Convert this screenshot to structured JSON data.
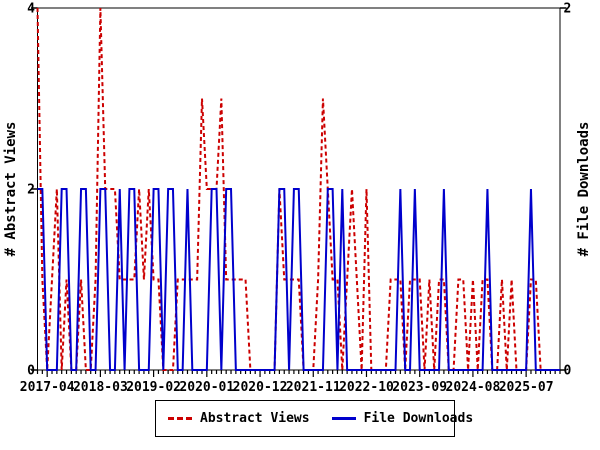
{
  "chart_data": {
    "type": "line",
    "title": "",
    "x_start_month": "2017-02",
    "x_end_month": "2026-02",
    "months_per_point": 1,
    "x_tick_labels": [
      "2017-04",
      "2018-03",
      "2019-02",
      "2020-01",
      "2020-12",
      "2021-11",
      "2022-10",
      "2023-09",
      "2024-08",
      "2025-07"
    ],
    "x_tick_month_indices": [
      2,
      13,
      24,
      35,
      46,
      57,
      68,
      79,
      90,
      101
    ],
    "left_axis": {
      "label": "# Abstract Views",
      "min": 0,
      "max": 4,
      "tick_values": [
        0,
        2,
        4
      ]
    },
    "right_axis": {
      "label": "# File Downloads",
      "min": 0,
      "max": 2,
      "tick_values": [
        0,
        2
      ]
    },
    "grid": false,
    "legend_position": "bottom",
    "series": [
      {
        "name": "Abstract Views",
        "axis": "left",
        "color": "#cc0000",
        "style": "dashed",
        "values": [
          4,
          1,
          0,
          1,
          2,
          0,
          1,
          0,
          0,
          1,
          0,
          0,
          1,
          4,
          2,
          2,
          2,
          1,
          1,
          1,
          1,
          2,
          1,
          2,
          1,
          1,
          0,
          0,
          0,
          1,
          1,
          1,
          1,
          1,
          3,
          2,
          2,
          2,
          3,
          1,
          1,
          1,
          1,
          1,
          0,
          0,
          0,
          0,
          0,
          0,
          2,
          1,
          1,
          1,
          1,
          0,
          0,
          0,
          1,
          3,
          2,
          1,
          1,
          0,
          1,
          2,
          1,
          0,
          2,
          0,
          0,
          0,
          0,
          1,
          1,
          1,
          0,
          1,
          1,
          1,
          0,
          1,
          0,
          1,
          1,
          0,
          0,
          1,
          1,
          0,
          1,
          0,
          1,
          1,
          0,
          0,
          1,
          0,
          1,
          0,
          0,
          0,
          1,
          1,
          0,
          0,
          0,
          0,
          0
        ]
      },
      {
        "name": "File Downloads",
        "axis": "right",
        "color": "#0000cc",
        "style": "solid",
        "values": [
          1,
          1,
          0,
          0,
          0,
          1,
          1,
          0,
          0,
          1,
          1,
          0,
          0,
          1,
          1,
          0,
          0,
          1,
          0,
          1,
          1,
          0,
          0,
          0,
          1,
          1,
          0,
          1,
          1,
          0,
          0,
          1,
          0,
          0,
          0,
          0,
          1,
          1,
          0,
          1,
          1,
          0,
          0,
          0,
          0,
          0,
          0,
          0,
          0,
          0,
          1,
          1,
          0,
          1,
          1,
          0,
          0,
          0,
          0,
          0,
          1,
          1,
          0,
          1,
          0,
          0,
          0,
          0,
          0,
          0,
          0,
          0,
          0,
          0,
          0,
          1,
          0,
          0,
          1,
          0,
          0,
          0,
          0,
          0,
          1,
          0,
          0,
          0,
          0,
          0,
          0,
          0,
          0,
          1,
          0,
          0,
          0,
          0,
          0,
          0,
          0,
          0,
          1,
          0,
          0,
          0,
          0,
          0,
          0
        ]
      }
    ]
  },
  "legend": {
    "items": [
      {
        "label": "Abstract Views",
        "color": "#cc0000",
        "style": "dashed"
      },
      {
        "label": "File Downloads",
        "color": "#0000cc",
        "style": "solid"
      }
    ]
  },
  "colors": {
    "abstract_views": "#cc0000",
    "file_downloads": "#0000cc",
    "axis": "#000000",
    "background": "#ffffff"
  }
}
